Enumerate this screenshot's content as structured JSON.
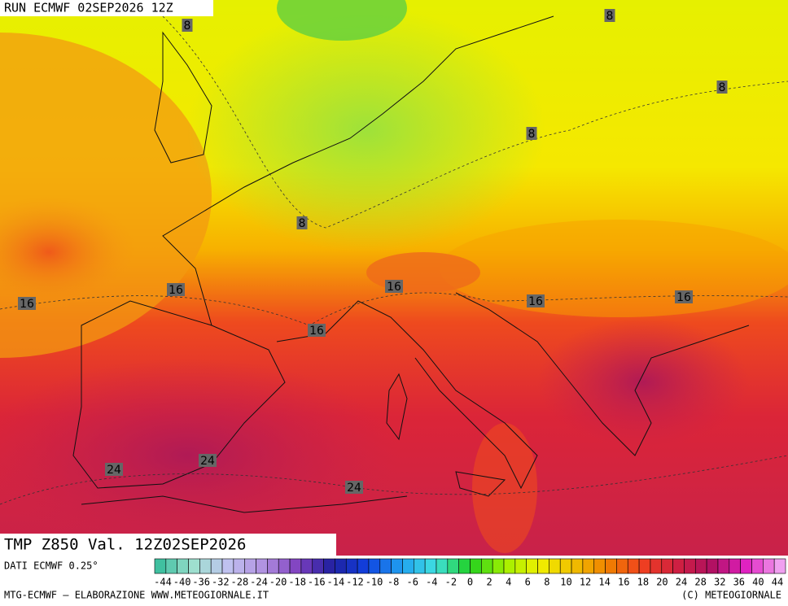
{
  "header": {
    "run": "RUN ECMWF 02SEP2026 12Z"
  },
  "map": {
    "title": "TMP Z850 Val. 12Z02SEP2026",
    "contour_labels": [
      8,
      8,
      8,
      8,
      8,
      16,
      16,
      16,
      16,
      16,
      16,
      24,
      24,
      24
    ]
  },
  "footer": {
    "source": "DATI ECMWF 0.25°",
    "colorbar_ticks": [
      -44,
      -40,
      -36,
      -32,
      -28,
      -24,
      -20,
      -18,
      -16,
      -14,
      -12,
      -10,
      -8,
      -6,
      -4,
      -2,
      0,
      2,
      4,
      6,
      8,
      10,
      12,
      14,
      16,
      18,
      20,
      24,
      28,
      32,
      36,
      40,
      44
    ],
    "credits": "MTG-ECMWF – ELABORAZIONE WWW.METEOGIORNALE.IT",
    "copyright": "(C) METEOGIORNALE"
  }
}
